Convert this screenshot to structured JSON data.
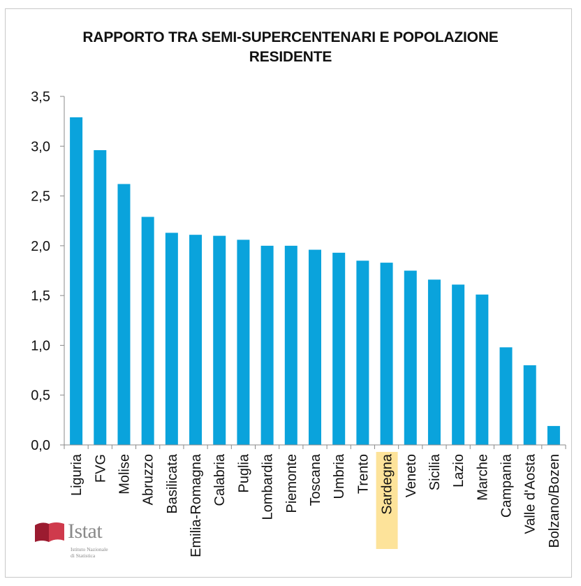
{
  "chart_data": {
    "type": "bar",
    "title_line1": "RAPPORTO TRA SEMI-SUPERCENTENARI E POPOLAZIONE",
    "title_line2": "RESIDENTE",
    "xlabel": "",
    "ylabel": "",
    "ylim": [
      0,
      3.5
    ],
    "yticks": [
      "0,0",
      "0,5",
      "1,0",
      "1,5",
      "2,0",
      "2,5",
      "3,0",
      "3,5"
    ],
    "categories": [
      "Liguria",
      "FVG",
      "Molise",
      "Abruzzo",
      "Basilicata",
      "Emilia-Romagna",
      "Calabria",
      "Puglia",
      "Lombardia",
      "Piemonte",
      "Toscana",
      "Umbria",
      "Trento",
      "Sardegna",
      "Veneto",
      "Sicilia",
      "Lazio",
      "Marche",
      "Campania",
      "Valle d'Aosta",
      "Bolzano/Bozen"
    ],
    "values": [
      3.29,
      2.96,
      2.62,
      2.29,
      2.13,
      2.11,
      2.1,
      2.06,
      2.0,
      2.0,
      1.96,
      1.93,
      1.85,
      1.83,
      1.75,
      1.66,
      1.61,
      1.51,
      0.98,
      0.8,
      0.19
    ],
    "highlight_category": "Sardegna",
    "bar_color": "#0aa3dc",
    "highlight_color": "#fde39a",
    "grid": false,
    "legend": "none"
  },
  "logo": {
    "word": "Istat",
    "sub1": "Istituto Nazionale",
    "sub2": "di Statistica",
    "color_dark": "#9b1b30",
    "color_light": "#cf3a4c"
  }
}
